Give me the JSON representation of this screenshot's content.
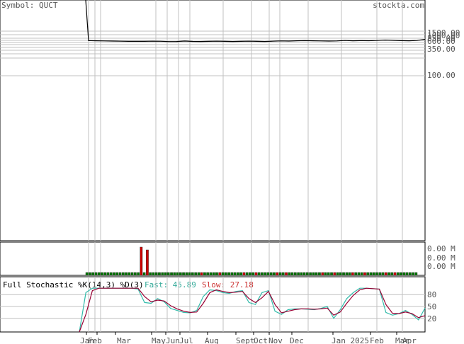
{
  "header": {
    "symbol_label": "Symbol: QUCT",
    "site": "stockta.com"
  },
  "colors": {
    "frame": "#000000",
    "grid": "#c0c0c0",
    "label_gray": "#555555",
    "volume_up": "#007700",
    "volume_down": "#cc0000",
    "fast_line": "#33bbaa",
    "slow_line": "#990033",
    "fast_label": "#33aa99",
    "slow_label": "#cc3333"
  },
  "chart_data": [
    {
      "type": "line",
      "panel": "price",
      "scale": "log",
      "ytick_labels": [
        "1500.00",
        "1000.00",
        "850.00",
        "600.00",
        "350.00",
        "100.00"
      ],
      "x_labels": [
        "Jan",
        "Feb",
        "Mar",
        "May",
        "Jun",
        "Jul",
        "Aug",
        "Sept",
        "Oct",
        "Nov",
        "Dec",
        "Jan 2025",
        "Feb",
        "Mar",
        "Apr"
      ],
      "series": [
        {
          "values": [
            600000,
            1050,
            1040,
            1030,
            1020,
            1010,
            1000,
            1000,
            1000,
            1010,
            1005,
            985,
            990,
            1020,
            995,
            990,
            1000,
            1010,
            1000,
            990,
            1000,
            1010,
            1000,
            990,
            1010,
            1030,
            1020,
            1040,
            1050,
            1040,
            1030,
            1020,
            1030,
            1060,
            1040,
            1050,
            1045,
            1060,
            1090,
            1070,
            1050,
            1040,
            1060,
            1150
          ]
        }
      ]
    },
    {
      "type": "bar",
      "panel": "volume",
      "ytick_labels": [
        "0.00 M",
        "0.00 M",
        "0.00 M"
      ],
      "values": [
        0.1,
        0.1,
        0.1,
        0.1,
        0.1,
        0.1,
        0.1,
        0.1,
        0.1,
        0.1,
        0.1,
        0.1,
        0.1,
        0.1,
        0.1,
        0.1,
        0.1,
        0.1,
        1.0,
        0.1,
        0.9,
        0.1,
        0.1,
        0.1,
        0.1,
        0.1,
        0.1,
        0.1,
        0.1,
        0.1,
        0.1,
        0.1,
        0.1,
        0.1,
        0.1,
        0.1,
        0.1,
        0.1,
        0.1,
        0.1,
        0.1,
        0.1,
        0.1,
        0.1,
        0.1,
        0.1,
        0.1,
        0.1,
        0.1,
        0.1,
        0.1,
        0.1,
        0.1,
        0.1,
        0.1,
        0.1,
        0.1,
        0.1,
        0.1,
        0.1,
        0.1,
        0.1,
        0.1,
        0.1,
        0.1,
        0.1,
        0.1,
        0.1,
        0.1,
        0.1,
        0.1,
        0.1,
        0.1,
        0.1,
        0.1,
        0.1,
        0.1,
        0.1,
        0.1,
        0.1,
        0.1,
        0.1,
        0.1,
        0.1,
        0.1,
        0.1,
        0.1,
        0.1,
        0.1,
        0.1,
        0.1,
        0.1,
        0.1,
        0.1,
        0.1,
        0.1,
        0.1,
        0.1,
        0.1,
        0.1,
        0.1,
        0.1,
        0.1,
        0.1,
        0.1,
        0.1,
        0.1,
        0.1,
        0.1,
        0.1
      ],
      "down": [
        18,
        20,
        38,
        44,
        52,
        56,
        63,
        66,
        78,
        82,
        88,
        92,
        99,
        102
      ]
    },
    {
      "type": "line",
      "panel": "stochastic",
      "title": "Full Stochastic %K(14,3) %D(3)",
      "fast_label": "Fast: 45.89",
      "slow_label": "Slow: 27.18",
      "ytick_labels": [
        "80",
        "50",
        "20"
      ],
      "ylim": [
        0,
        100
      ],
      "series": [
        {
          "name": "Fast",
          "values": [
            0,
            85,
            96,
            96,
            96,
            96,
            96,
            96,
            96,
            94,
            60,
            58,
            70,
            62,
            45,
            40,
            35,
            34,
            40,
            75,
            92,
            90,
            85,
            83,
            88,
            90,
            60,
            55,
            85,
            90,
            38,
            30,
            42,
            44,
            44,
            43,
            42,
            45,
            50,
            20,
            42,
            70,
            85,
            96,
            96,
            95,
            94,
            35,
            28,
            32,
            40,
            30,
            16,
            46
          ]
        },
        {
          "name": "Slow",
          "values": [
            0,
            30,
            90,
            96,
            96,
            96,
            96,
            96,
            96,
            96,
            75,
            62,
            66,
            64,
            52,
            44,
            38,
            35,
            36,
            58,
            85,
            92,
            88,
            85,
            86,
            88,
            70,
            60,
            72,
            88,
            55,
            34,
            38,
            42,
            44,
            44,
            43,
            44,
            46,
            28,
            36,
            58,
            78,
            92,
            96,
            95,
            94,
            55,
            33,
            32,
            36,
            32,
            22,
            27
          ]
        }
      ]
    }
  ]
}
